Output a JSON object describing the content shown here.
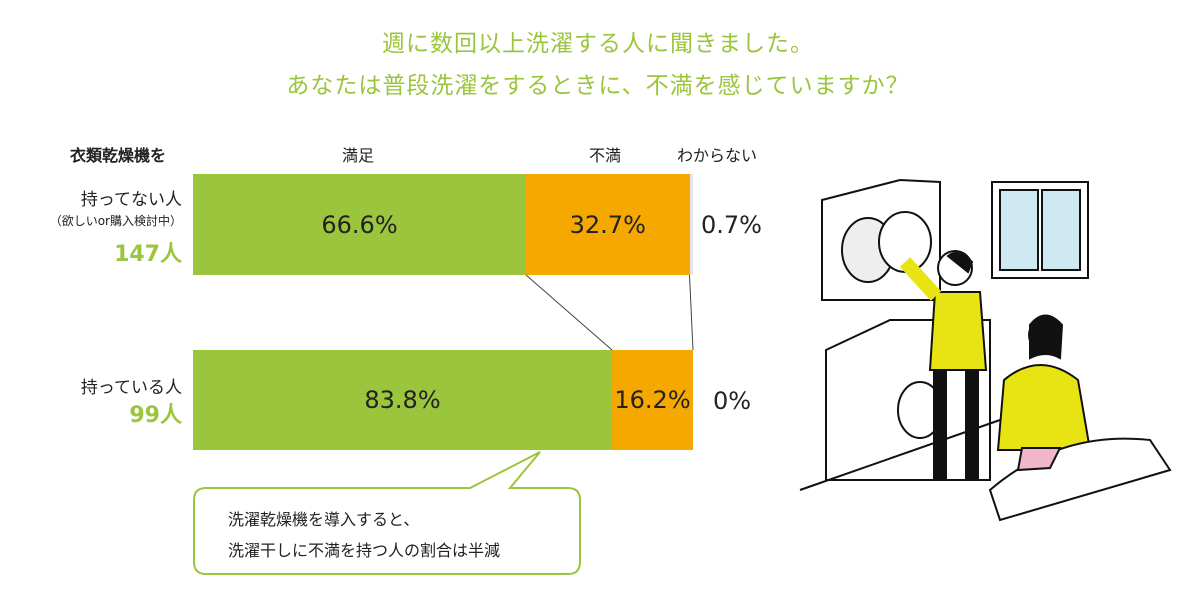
{
  "header": {
    "title_line1": "週に数回以上洗濯する人に聞きました。",
    "title_line2": "あなたは普段洗濯をするときに、不満を感じていますか？"
  },
  "chart_data": {
    "type": "bar",
    "orientation": "horizontal-stacked-100",
    "row_header": "衣類乾燥機を",
    "legend": [
      "満足",
      "不満",
      "わからない"
    ],
    "colors": {
      "満足": "#9bc53d",
      "不満": "#f5a800",
      "わからない": "#e6e6e6"
    },
    "rows": [
      {
        "label": "持ってない人",
        "sub": "（欲しいor購入検討中）",
        "count": "147人",
        "values": [
          66.6,
          32.7,
          0.7
        ],
        "labels": [
          "66.6%",
          "32.7%",
          "0.7%"
        ]
      },
      {
        "label": "持っている人",
        "sub": "",
        "count": "99人",
        "values": [
          83.8,
          16.2,
          0
        ],
        "labels": [
          "83.8%",
          "16.2%",
          "0%"
        ]
      }
    ]
  },
  "callout": {
    "line1": "洗濯乾燥機を導入すると、",
    "line2": "洗濯干しに不満を持つ人の割合は半減"
  },
  "illustration": {
    "icon": "laundry-couple-illustration"
  }
}
